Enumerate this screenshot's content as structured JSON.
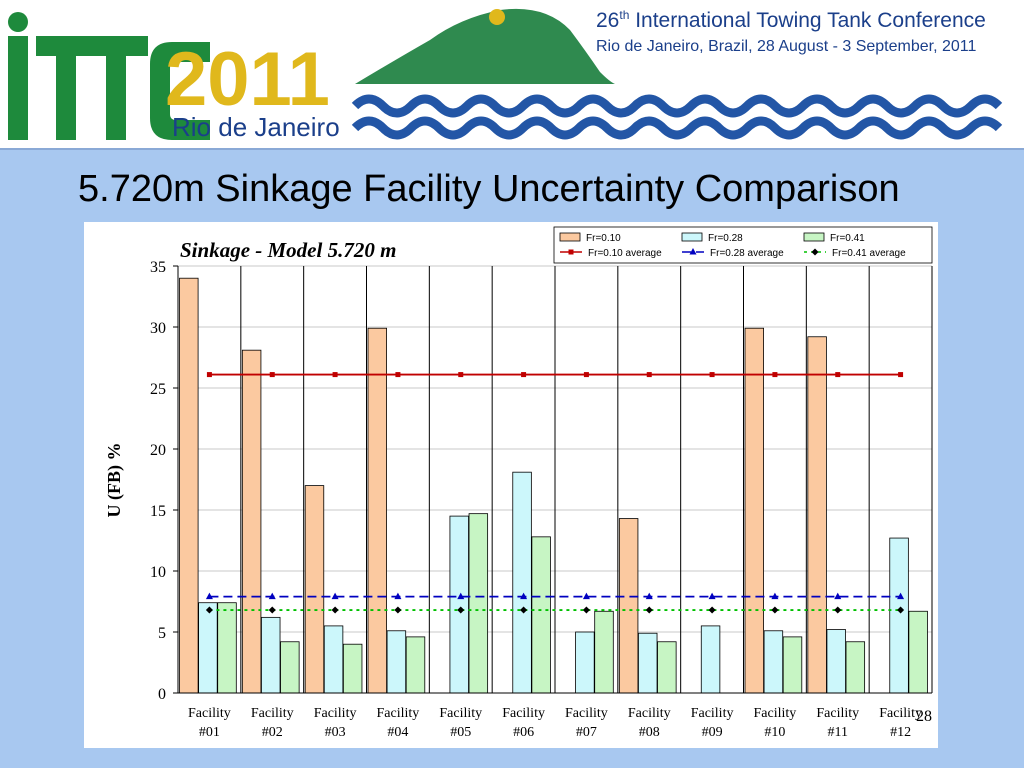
{
  "banner": {
    "logo_letters": "ITTC",
    "logo_year": "2011",
    "logo_city": "Rio de Janeiro",
    "conf_line1_prefix": "26",
    "conf_line1_sup": "th",
    "conf_line1_rest": " International Towing Tank Conference",
    "conf_line2": "Rio de Janeiro, Brazil, 28 August - 3 September, 2011"
  },
  "slide": {
    "title": "5.720m Sinkage Facility Uncertainty Comparison",
    "page_number": "28"
  },
  "colors": {
    "fr010_bar": "#fbc9a0",
    "fr028_bar": "#ccf7fb",
    "fr041_bar": "#c7f5c4",
    "fr010_avg": "#c00000",
    "fr028_avg": "#0000c0",
    "fr041_avg": "#00c000",
    "mountain": "#2f8a4f",
    "wave": "#2356a6"
  },
  "chart_data": {
    "type": "bar",
    "title": "Sinkage - Model 5.720 m",
    "ylabel": "U (FB) %",
    "xlabel": "",
    "ylim": [
      0,
      35
    ],
    "yticks": [
      0,
      5,
      10,
      15,
      20,
      25,
      30,
      35
    ],
    "grid": "horizontal",
    "legend_position": "top-right",
    "categories": [
      [
        "Facility",
        "#01"
      ],
      [
        "Facility",
        "#02"
      ],
      [
        "Facility",
        "#03"
      ],
      [
        "Facility",
        "#04"
      ],
      [
        "Facility",
        "#05"
      ],
      [
        "Facility",
        "#06"
      ],
      [
        "Facility",
        "#07"
      ],
      [
        "Facility",
        "#08"
      ],
      [
        "Facility",
        "#09"
      ],
      [
        "Facility",
        "#10"
      ],
      [
        "Facility",
        "#11"
      ],
      [
        "Facility",
        "#12"
      ]
    ],
    "series": [
      {
        "name": "Fr=0.10",
        "values": [
          34.0,
          28.1,
          17.0,
          29.9,
          null,
          null,
          null,
          14.3,
          null,
          29.9,
          29.2,
          null
        ]
      },
      {
        "name": "Fr=0.28",
        "values": [
          7.4,
          6.2,
          5.5,
          5.1,
          14.5,
          18.1,
          5.0,
          4.9,
          5.5,
          5.1,
          5.2,
          12.7
        ]
      },
      {
        "name": "Fr=0.41",
        "values": [
          7.4,
          4.2,
          4.0,
          4.6,
          14.7,
          12.8,
          6.7,
          4.2,
          null,
          4.6,
          4.2,
          6.7
        ]
      }
    ],
    "averages": [
      {
        "name": "Fr=0.10 average",
        "value": 26.1
      },
      {
        "name": "Fr=0.28 average",
        "value": 7.9
      },
      {
        "name": "Fr=0.41 average",
        "value": 6.8
      }
    ]
  }
}
